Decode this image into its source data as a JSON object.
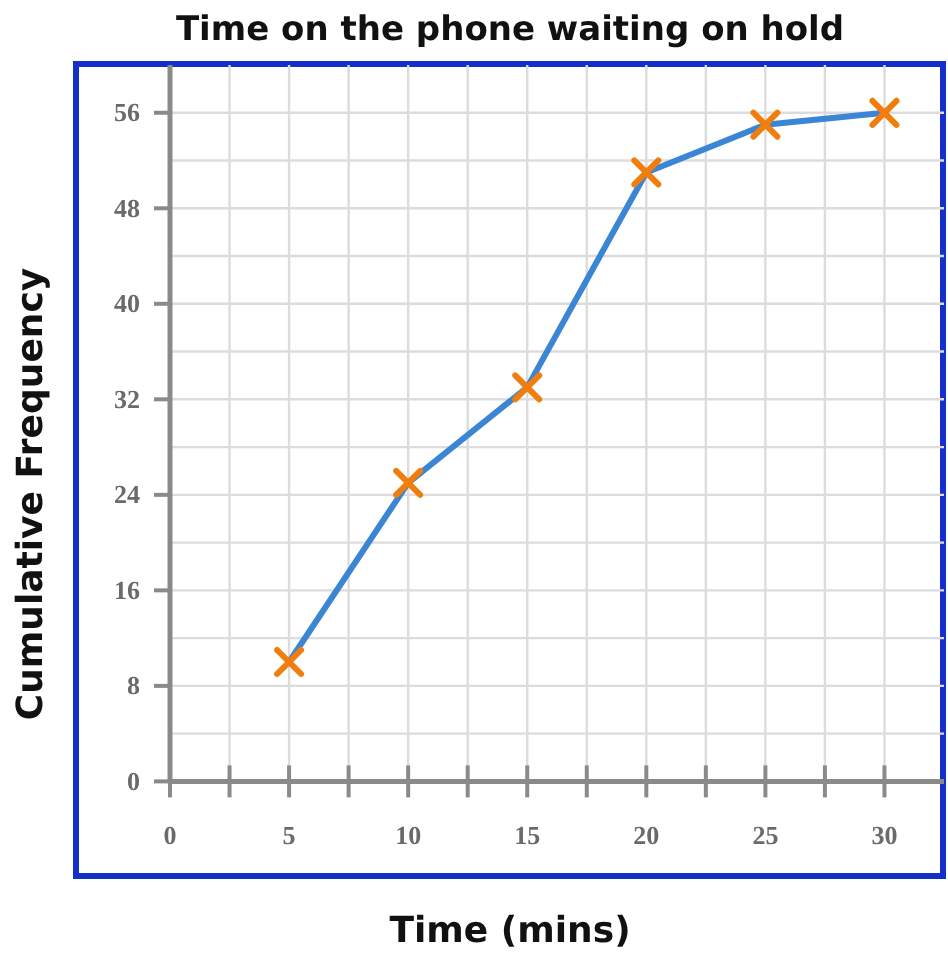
{
  "chart_data": {
    "type": "line",
    "title": "Time on the phone waiting on hold",
    "xlabel": "Time (mins)",
    "ylabel": "Cumulative Frequency",
    "x": [
      5,
      10,
      15,
      20,
      25,
      30
    ],
    "series": [
      {
        "type": "line",
        "color": "#3a86d4",
        "values": [
          10,
          25,
          33,
          51,
          55,
          56
        ],
        "marker": "none",
        "line_style": "solid"
      },
      {
        "type": "scatter",
        "color": "#f07d0c",
        "values": [
          10,
          25,
          33,
          51,
          55,
          56
        ],
        "marker": "cross"
      }
    ],
    "xlim": [
      0,
      32.5
    ],
    "xticks": [
      0,
      {
        "value": 2.5,
        "label": null
      },
      5,
      {
        "value": 7.5,
        "label": null
      },
      10,
      {
        "value": 12.5,
        "label": null
      },
      15,
      {
        "value": 17.5,
        "label": null
      },
      20,
      {
        "value": 22.5,
        "label": null
      },
      25,
      {
        "value": 27.5,
        "label": null
      },
      30
    ],
    "ylim": [
      0,
      60
    ],
    "yticks": [
      0,
      {
        "value": 4,
        "label": null
      },
      8,
      {
        "value": 12,
        "label": null
      },
      16,
      {
        "value": 20,
        "label": null
      },
      24,
      {
        "value": 28,
        "label": null
      },
      32,
      {
        "value": 36,
        "label": null
      },
      40,
      {
        "value": 44,
        "label": null
      },
      48,
      {
        "value": 52,
        "label": null
      },
      56
    ],
    "grid": true
  }
}
